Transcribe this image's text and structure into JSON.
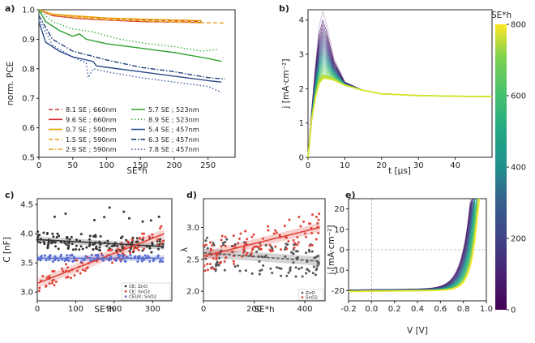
{
  "chart_data": [
    {
      "panel_label": "a)",
      "type": "line",
      "xlabel": "SE*h",
      "ylabel": "norm. PCE",
      "xlim": [
        0,
        290
      ],
      "ylim": [
        0.5,
        1.0
      ],
      "xticks": [
        "0",
        "50",
        "100",
        "150",
        "200",
        "250"
      ],
      "yticks": [
        "0.5",
        "0.6",
        "0.7",
        "0.8",
        "0.9",
        "1.0"
      ],
      "series": [
        {
          "name": "8.1 SE ; 660nm",
          "color": "#c0392b",
          "dash": "dash",
          "x": [
            0,
            20,
            60,
            100,
            150,
            200,
            240
          ],
          "y": [
            1.0,
            0.985,
            0.975,
            0.97,
            0.965,
            0.962,
            0.96
          ]
        },
        {
          "name": "9.6 SE ; 660nm",
          "color": "#d62728",
          "dash": "solid",
          "x": [
            0,
            20,
            60,
            100,
            150,
            200,
            240
          ],
          "y": [
            1.0,
            0.98,
            0.97,
            0.965,
            0.96,
            0.958,
            0.957
          ]
        },
        {
          "name": "0.7 SE ; 590nm",
          "color": "#e69b00",
          "dash": "solid",
          "x": [
            0,
            20,
            60,
            100,
            150,
            200,
            240
          ],
          "y": [
            1.0,
            0.985,
            0.978,
            0.972,
            0.968,
            0.965,
            0.963
          ]
        },
        {
          "name": "1.5 SE ; 590nm",
          "color": "#f0a020",
          "dash": "dash",
          "x": [
            0,
            20,
            60,
            100,
            150,
            200,
            250,
            275
          ],
          "y": [
            1.0,
            0.985,
            0.975,
            0.968,
            0.963,
            0.96,
            0.956,
            0.955
          ]
        },
        {
          "name": "2.9 SE ; 590nm",
          "color": "#e8b040",
          "dash": "dashdot",
          "x": [
            0,
            20,
            60,
            100,
            150,
            200,
            245
          ],
          "y": [
            1.0,
            0.982,
            0.972,
            0.966,
            0.962,
            0.958,
            0.955
          ]
        },
        {
          "name": "5.7 SE ; 523nm",
          "color": "#2ca02c",
          "dash": "solid",
          "x": [
            0,
            10,
            30,
            50,
            60,
            70,
            100,
            150,
            200,
            250,
            270
          ],
          "y": [
            1.0,
            0.96,
            0.93,
            0.91,
            0.918,
            0.9,
            0.885,
            0.87,
            0.855,
            0.835,
            0.825
          ]
        },
        {
          "name": "8.9 SE ; 523nm",
          "color": "#3cb043",
          "dash": "dot",
          "x": [
            0,
            20,
            50,
            80,
            120,
            160,
            200,
            240,
            265
          ],
          "y": [
            1.0,
            0.96,
            0.935,
            0.925,
            0.9,
            0.885,
            0.875,
            0.86,
            0.865
          ]
        },
        {
          "name": "5.4 SE ; 457nm",
          "color": "#2c4a8a",
          "dash": "solid",
          "x": [
            0,
            10,
            30,
            50,
            80,
            85,
            100,
            150,
            200,
            250,
            270
          ],
          "y": [
            0.96,
            0.89,
            0.86,
            0.84,
            0.825,
            0.81,
            0.805,
            0.79,
            0.775,
            0.76,
            0.755
          ]
        },
        {
          "name": "6.3 SE ; 457nm",
          "color": "#1f3f7a",
          "dash": "dashdot",
          "x": [
            0,
            20,
            50,
            100,
            150,
            200,
            250,
            275
          ],
          "y": [
            0.98,
            0.9,
            0.86,
            0.83,
            0.805,
            0.79,
            0.77,
            0.765
          ]
        },
        {
          "name": "7.8 SE ; 457nm",
          "color": "#3d5aa0",
          "dash": "dot",
          "x": [
            0,
            20,
            50,
            70,
            73,
            80,
            100,
            150,
            200,
            250,
            270
          ],
          "y": [
            0.97,
            0.88,
            0.84,
            0.82,
            0.77,
            0.8,
            0.79,
            0.77,
            0.755,
            0.74,
            0.72
          ]
        }
      ]
    },
    {
      "panel_label": "b)",
      "type": "line",
      "xlabel": "t [μs]",
      "ylabel": "j [mA·cm⁻²]",
      "xlim": [
        0,
        50
      ],
      "ylim": [
        0,
        4.3
      ],
      "xticks": [
        "0",
        "10",
        "20",
        "30",
        "40"
      ],
      "yticks": [
        "0",
        "1",
        "2",
        "3",
        "4"
      ],
      "colorbar_label": "SE*h",
      "colorbar_ticks": [
        "0",
        "200",
        "400",
        "600",
        "800"
      ],
      "series": [
        {
          "name": "first curve",
          "color": "#b39ac2",
          "x": [
            0,
            1,
            2,
            3,
            4,
            5,
            7,
            10,
            15,
            20,
            30,
            40,
            50
          ],
          "y": [
            0,
            1.4,
            2.7,
            3.8,
            4.25,
            3.9,
            2.9,
            2.2,
            1.95,
            1.85,
            1.8,
            1.78,
            1.77
          ]
        },
        {
          "name": "last curve",
          "color": "#d7e32b",
          "x": [
            0,
            1,
            2,
            3,
            4,
            5,
            7,
            10,
            15,
            20,
            30,
            40,
            50
          ],
          "y": [
            0,
            1.1,
            1.75,
            2.15,
            2.3,
            2.3,
            2.25,
            2.1,
            1.95,
            1.85,
            1.8,
            1.78,
            1.77
          ]
        }
      ]
    },
    {
      "panel_label": "c)",
      "type": "scatter",
      "xlabel": "SE*h",
      "ylabel": "C [nF]",
      "xlim": [
        0,
        350
      ],
      "ylim": [
        2.85,
        4.6
      ],
      "xticks": [
        "0",
        "100",
        "200",
        "300"
      ],
      "yticks": [
        "3.0",
        "3.5",
        "4.0",
        "4.5"
      ],
      "legend": [
        "CE; ZnO",
        "CE; SnO2",
        "CEUV; SnO2"
      ],
      "fits": [
        {
          "x": [
            0,
            330
          ],
          "y": [
            3.9,
            3.78
          ]
        },
        {
          "x": [
            0,
            330
          ],
          "y": [
            3.15,
            4.0
          ]
        },
        {
          "x": [
            0,
            330
          ],
          "y": [
            3.58,
            3.58
          ]
        }
      ]
    },
    {
      "panel_label": "d)",
      "type": "scatter",
      "xlabel": "SE*h",
      "ylabel": "λ",
      "xlim": [
        0,
        480
      ],
      "ylim": [
        1.85,
        3.45
      ],
      "xticks": [
        "0",
        "200",
        "400"
      ],
      "yticks": [
        "2.0",
        "2.5",
        "3.0"
      ],
      "legend": [
        "ZnO",
        "SnO2"
      ],
      "fits": [
        {
          "x": [
            0,
            460
          ],
          "y": [
            2.6,
            2.47
          ]
        },
        {
          "x": [
            0,
            460
          ],
          "y": [
            2.55,
            3.0
          ]
        }
      ]
    },
    {
      "panel_label": "e)",
      "type": "line",
      "xlabel": "V [V]",
      "ylabel": "j [mA·cm⁻²]",
      "xlim": [
        -0.2,
        1.0
      ],
      "ylim": [
        -25,
        25
      ],
      "xticks": [
        "-0.2",
        "0.0",
        "0.2",
        "0.4",
        "0.6",
        "0.8",
        "1.0"
      ],
      "yticks": [
        "-20",
        "-10",
        "0",
        "10",
        "20"
      ]
    }
  ]
}
